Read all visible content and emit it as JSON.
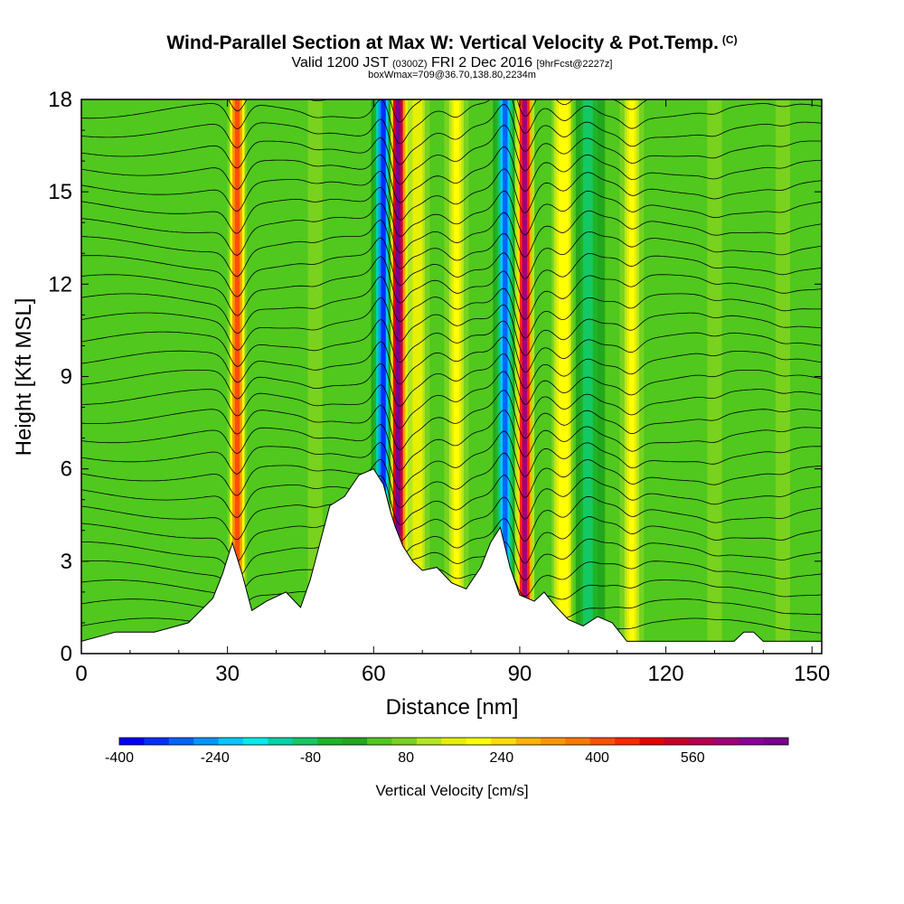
{
  "header": {
    "title": "Wind-Parallel Section at Max W: Vertical Velocity & Pot.Temp.",
    "title_mark": "(C)",
    "valid_prefix": "Valid 1200 JST",
    "valid_utc": "(0300Z)",
    "valid_date": "FRI 2 Dec 2016",
    "forecast": "[9hrFcst@2227z]",
    "box_info": "boxWmax=709@36.70,138.80,2234m"
  },
  "chart_data": {
    "type": "heatmap",
    "xlabel": "Distance [nm]",
    "ylabel": "Height [Kft MSL]",
    "xlim": [
      0,
      152
    ],
    "ylim": [
      0,
      18
    ],
    "xticks": [
      "0",
      "30",
      "60",
      "90",
      "120",
      "150"
    ],
    "yticks": [
      "0",
      "3",
      "6",
      "9",
      "12",
      "15",
      "18"
    ],
    "colorbar": {
      "label": "Vertical Velocity [cm/s]",
      "tick_labels": [
        "-400",
        "-240",
        "-80",
        "80",
        "240",
        "400",
        "560"
      ],
      "tick_values": [
        -400,
        -240,
        -80,
        80,
        240,
        400,
        560
      ],
      "range": [
        -400,
        720
      ],
      "colors": [
        "#0000ff",
        "#0030ff",
        "#0064ff",
        "#0096ff",
        "#00c8ff",
        "#00ebeb",
        "#00d2aa",
        "#14c864",
        "#1eb428",
        "#23a71c",
        "#50c81e",
        "#78d21e",
        "#b4e61e",
        "#e6f000",
        "#ffff00",
        "#ffdc00",
        "#ffb400",
        "#ff9600",
        "#ff7800",
        "#ff5000",
        "#ff2800",
        "#e60000",
        "#c80028",
        "#b40050",
        "#a00078",
        "#8c0096",
        "#78008c"
      ]
    },
    "terrain_kft": [
      [
        0,
        0.4
      ],
      [
        7,
        0.7
      ],
      [
        15,
        0.7
      ],
      [
        22,
        1.0
      ],
      [
        27,
        1.8
      ],
      [
        29,
        2.6
      ],
      [
        31,
        3.6
      ],
      [
        33,
        2.6
      ],
      [
        35,
        1.4
      ],
      [
        38,
        1.7
      ],
      [
        42,
        2.0
      ],
      [
        45,
        1.5
      ],
      [
        47,
        2.4
      ],
      [
        49,
        3.6
      ],
      [
        51,
        4.8
      ],
      [
        54,
        5.1
      ],
      [
        57,
        5.8
      ],
      [
        60,
        6.0
      ],
      [
        62,
        5.5
      ],
      [
        63.5,
        4.6
      ],
      [
        64.5,
        4.1
      ],
      [
        66,
        3.5
      ],
      [
        68,
        3.0
      ],
      [
        70,
        2.7
      ],
      [
        73,
        2.8
      ],
      [
        76,
        2.3
      ],
      [
        79,
        2.1
      ],
      [
        82,
        2.8
      ],
      [
        84,
        3.6
      ],
      [
        86,
        4.1
      ],
      [
        88,
        2.8
      ],
      [
        90,
        1.9
      ],
      [
        93,
        1.7
      ],
      [
        95,
        2.0
      ],
      [
        97,
        1.6
      ],
      [
        100,
        1.1
      ],
      [
        103,
        0.9
      ],
      [
        106,
        1.2
      ],
      [
        109,
        1.0
      ],
      [
        112,
        0.4
      ],
      [
        120,
        0.4
      ],
      [
        134,
        0.4
      ],
      [
        136,
        0.7
      ],
      [
        138,
        0.7
      ],
      [
        140,
        0.4
      ],
      [
        152,
        0.4
      ]
    ],
    "series": [
      {
        "x": 32,
        "w": 420
      },
      {
        "x": 48,
        "w": 60
      },
      {
        "x": 62,
        "w": -370
      },
      {
        "x": 65,
        "w": 709
      },
      {
        "x": 69,
        "w": 160
      },
      {
        "x": 77,
        "w": 170
      },
      {
        "x": 87,
        "w": -320
      },
      {
        "x": 91,
        "w": 620
      },
      {
        "x": 99,
        "w": 190
      },
      {
        "x": 104,
        "w": -120
      },
      {
        "x": 113,
        "w": 170
      },
      {
        "x": 130,
        "w": 70
      },
      {
        "x": 144,
        "w": 60
      }
    ],
    "isentrope_count": 30
  }
}
